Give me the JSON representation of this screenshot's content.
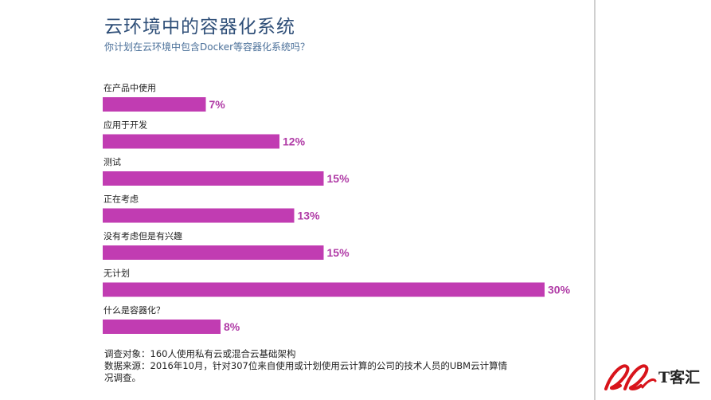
{
  "header": {
    "title": "云环境中的容器化系统",
    "subtitle": "你计划在云环境中包含Docker等容器化系统吗？"
  },
  "chart_data": {
    "type": "bar",
    "orientation": "horizontal",
    "categories": [
      "在产品中使用",
      "应用于开发",
      "测试",
      "正在考虑",
      "没有考虑但是有兴趣",
      "无计划",
      "什么是容器化？"
    ],
    "values": [
      7,
      12,
      15,
      13,
      15,
      30,
      8
    ],
    "value_labels": [
      "7%",
      "12%",
      "15%",
      "13%",
      "15%",
      "30%",
      "8%"
    ],
    "unit": "%",
    "xlim": [
      0,
      30
    ],
    "bar_color": "#c13cb2",
    "label_color": "#b03ba6",
    "grid": false,
    "legend": "none"
  },
  "footnote": {
    "line1": "调查对象：160人使用私有云或混合云基础架构",
    "line2": "数据来源：2016年10月，针对307位来自使用或计划使用云计算的公司的技术人员的UBM云计算情",
    "line3": "况调查。"
  },
  "logo": {
    "text": "T客汇",
    "mark_color": "#d8141b"
  }
}
